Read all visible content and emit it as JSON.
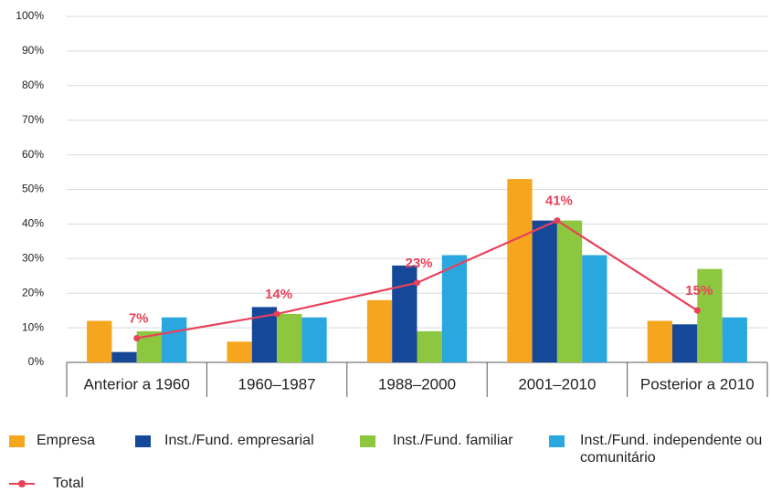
{
  "chart_data": {
    "type": "bar",
    "categories": [
      "Anterior a 1960",
      "1960–1987",
      "1988–2000",
      "2001–2010",
      "Posterior a 2010"
    ],
    "series": [
      {
        "name": "Empresa",
        "color": "#f6a51f",
        "values": [
          12,
          6,
          18,
          53,
          12
        ]
      },
      {
        "name": "Inst./Fund. empresarial",
        "color": "#16489a",
        "values": [
          3,
          16,
          28,
          41,
          11
        ]
      },
      {
        "name": "Inst./Fund. familiar",
        "color": "#8dc63f",
        "values": [
          9,
          14,
          9,
          41,
          27
        ]
      },
      {
        "name": "Inst./Fund. independente ou comunitário",
        "color": "#2aa7df",
        "values": [
          13,
          13,
          31,
          31,
          13
        ]
      },
      {
        "name": "Total",
        "type": "line",
        "color": "#e8415a",
        "values": [
          7,
          14,
          23,
          41,
          15
        ],
        "value_labels": [
          "7%",
          "14%",
          "23%",
          "41%",
          "15%"
        ]
      }
    ],
    "ylim": [
      0,
      100
    ],
    "yticks": [
      {
        "value": 0,
        "label": "0%"
      },
      {
        "value": 10,
        "label": "10%"
      },
      {
        "value": 20,
        "label": "20%"
      },
      {
        "value": 30,
        "label": "30%"
      },
      {
        "value": 40,
        "label": "40%"
      },
      {
        "value": 50,
        "label": "50%"
      },
      {
        "value": 60,
        "label": "60%"
      },
      {
        "value": 70,
        "label": "70%"
      },
      {
        "value": 80,
        "label": "80%"
      },
      {
        "value": 90,
        "label": "90%"
      },
      {
        "value": 100,
        "label": "100%"
      }
    ],
    "grid": true
  }
}
